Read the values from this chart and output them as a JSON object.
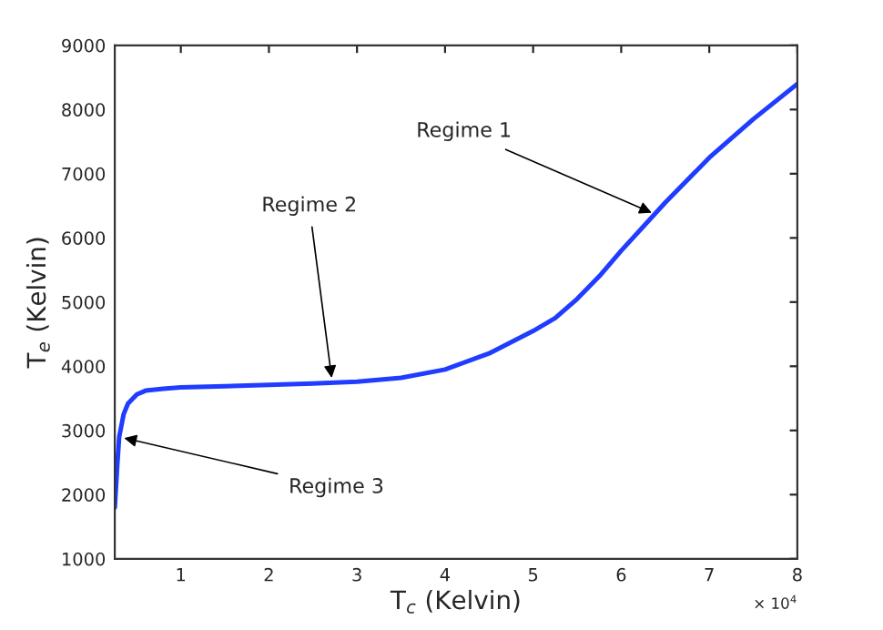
{
  "chart_data": {
    "type": "line",
    "xlabel": "T$_{c}$ (Kelvin)",
    "ylabel": "T$_{e}$ (Kelvin)",
    "x": [
      0.25,
      0.28,
      0.3,
      0.35,
      0.4,
      0.5,
      0.6,
      0.8,
      1,
      1.5,
      2,
      2.5,
      3,
      3.5,
      4,
      4.5,
      5,
      5.25,
      5.5,
      5.75,
      6,
      6.5,
      7,
      7.5,
      8
    ],
    "series": [
      {
        "color": "#1f3cff",
        "values": [
          1800,
          2500,
          2900,
          3250,
          3420,
          3560,
          3620,
          3650,
          3670,
          3690,
          3710,
          3730,
          3760,
          3820,
          3950,
          4200,
          4550,
          4750,
          5050,
          5400,
          5800,
          6550,
          7250,
          7850,
          8400
        ]
      }
    ],
    "xlim": [
      0.25,
      8
    ],
    "ylim": [
      1000,
      9000
    ],
    "xticks": [
      1,
      2,
      3,
      4,
      5,
      6,
      7,
      8
    ],
    "yticks": [
      1000,
      2000,
      3000,
      4000,
      5000,
      6000,
      7000,
      8000,
      9000
    ],
    "annotations": [
      {
        "text": "Regime 1",
        "x": 6.4,
        "y": 6360
      },
      {
        "text": "Regime 2",
        "x": 2.72,
        "y": 3740
      },
      {
        "text": "Regime 3",
        "x": 0.3,
        "y": 2900
      },
      "× 10$^{4}$"
    ],
    "grid": false,
    "legend": false,
    "marker": "none",
    "line_style": "solid"
  }
}
